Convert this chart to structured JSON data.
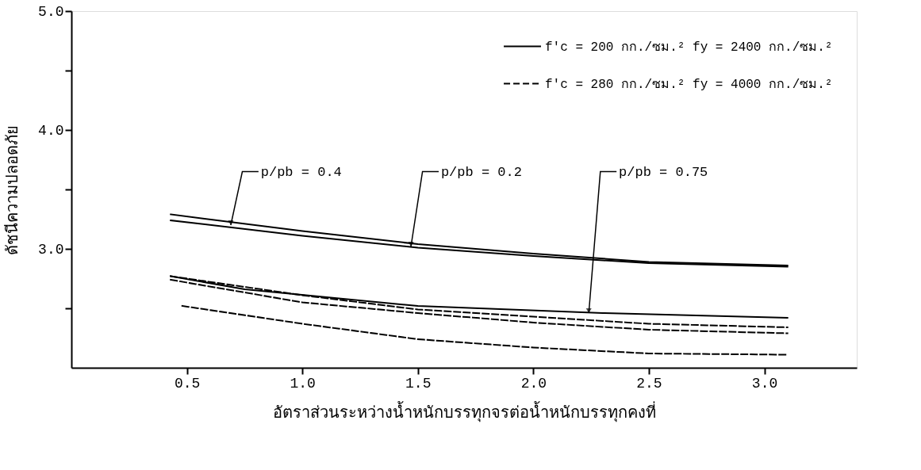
{
  "chart_data": {
    "type": "line",
    "xlabel": "อัตราส่วนระหว่างน้ำหนักบรรทุกจรต่อน้ำหนักบรรทุกคงที่",
    "ylabel": "ดัชนีความปลอดภัย",
    "xlim": [
      0,
      3.4
    ],
    "ylim": [
      2,
      5
    ],
    "xticks": [
      {
        "value": 0.5,
        "label": "0.5"
      },
      {
        "value": 1,
        "label": "1.0"
      },
      {
        "value": 1.5,
        "label": "1.5"
      },
      {
        "value": 2,
        "label": "2.0"
      },
      {
        "value": 2.5,
        "label": "2.5"
      },
      {
        "value": 3,
        "label": "3.0"
      }
    ],
    "yticks": [
      {
        "value": 2.5,
        "label": null
      },
      {
        "value": 3,
        "label": "3.0"
      },
      {
        "value": 3.5,
        "label": null
      },
      {
        "value": 4,
        "label": "4.0"
      },
      {
        "value": 4.5,
        "label": null
      },
      {
        "value": 5,
        "label": "5.0"
      }
    ],
    "grid": false,
    "legend": "top right",
    "marker": "none",
    "series": [
      {
        "name": "f′c = 200 กก./ซม.²  fy = 2400 กก./ซม.²",
        "color": "#000000",
        "line_style": "solid",
        "x": [
          0.43,
          1.0,
          1.5,
          2.0,
          2.5,
          3.1
        ],
        "values": [
          3.29,
          3.15,
          3.04,
          2.96,
          2.89,
          2.86
        ]
      },
      {
        "color": "#000000",
        "line_style": "solid",
        "x": [
          0.43,
          1.0,
          1.5,
          2.0,
          2.5,
          3.1
        ],
        "values": [
          3.24,
          3.11,
          3.01,
          2.94,
          2.88,
          2.85
        ]
      },
      {
        "color": "#000000",
        "line_style": "solid",
        "x": [
          0.43,
          0.75,
          1.5,
          2.3,
          3.1
        ],
        "values": [
          2.77,
          2.66,
          2.52,
          2.46,
          2.42
        ]
      },
      {
        "name": "f′c = 280 กก./ซม.²  fy = 4000 กก./ซม.²",
        "color": "#000000",
        "line_style": "dashed",
        "x": [
          0.43,
          1.0,
          1.5,
          2.0,
          2.5,
          3.1
        ],
        "values": [
          2.77,
          2.61,
          2.49,
          2.43,
          2.37,
          2.34
        ]
      },
      {
        "color": "#000000",
        "line_style": "dashed",
        "x": [
          0.43,
          1.0,
          1.5,
          2.0,
          2.5,
          3.1
        ],
        "values": [
          2.74,
          2.55,
          2.46,
          2.38,
          2.32,
          2.29
        ]
      },
      {
        "color": "#000000",
        "line_style": "dashed",
        "x": [
          0.48,
          1.0,
          1.5,
          2.0,
          2.5,
          3.1
        ],
        "values": [
          2.52,
          2.37,
          2.24,
          2.17,
          2.12,
          2.11
        ]
      }
    ],
    "annotations": [
      {
        "text": "p/pb = 0.4",
        "x": 0.69,
        "y": 3.2
      },
      {
        "text": "p/pb = 0.2",
        "x": 1.47,
        "y": 3.02
      },
      {
        "text": "p/pb = 0.75",
        "x": 2.24,
        "y": 2.46
      }
    ]
  }
}
